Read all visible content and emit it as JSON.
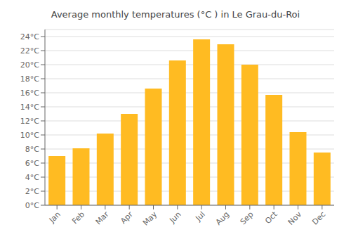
{
  "chart_data": {
    "type": "bar",
    "title": "Average monthly temperatures (°C ) in Le Grau-du-Roi",
    "categories": [
      "Jan",
      "Feb",
      "Mar",
      "Apr",
      "May",
      "Jun",
      "Jul",
      "Aug",
      "Sep",
      "Oct",
      "Nov",
      "Dec"
    ],
    "values": [
      7.0,
      8.1,
      10.2,
      13.0,
      16.6,
      20.6,
      23.6,
      22.9,
      20.0,
      15.7,
      10.4,
      7.5
    ],
    "color": "#FFBB22",
    "ylim": [
      0,
      25
    ],
    "yticks": [
      {
        "value": 0,
        "label": "0°C"
      },
      {
        "value": 2,
        "label": "2°C"
      },
      {
        "value": 4,
        "label": "4°C"
      },
      {
        "value": 6,
        "label": "6°C"
      },
      {
        "value": 8,
        "label": "8°C"
      },
      {
        "value": 10,
        "label": "10°C"
      },
      {
        "value": 12,
        "label": "12°C"
      },
      {
        "value": 14,
        "label": "14°C"
      },
      {
        "value": 16,
        "label": "16°C"
      },
      {
        "value": 18,
        "label": "18°C"
      },
      {
        "value": 20,
        "label": "20°C"
      },
      {
        "value": 22,
        "label": "22°C"
      },
      {
        "value": 24,
        "label": "24°C"
      }
    ],
    "grid": true
  }
}
